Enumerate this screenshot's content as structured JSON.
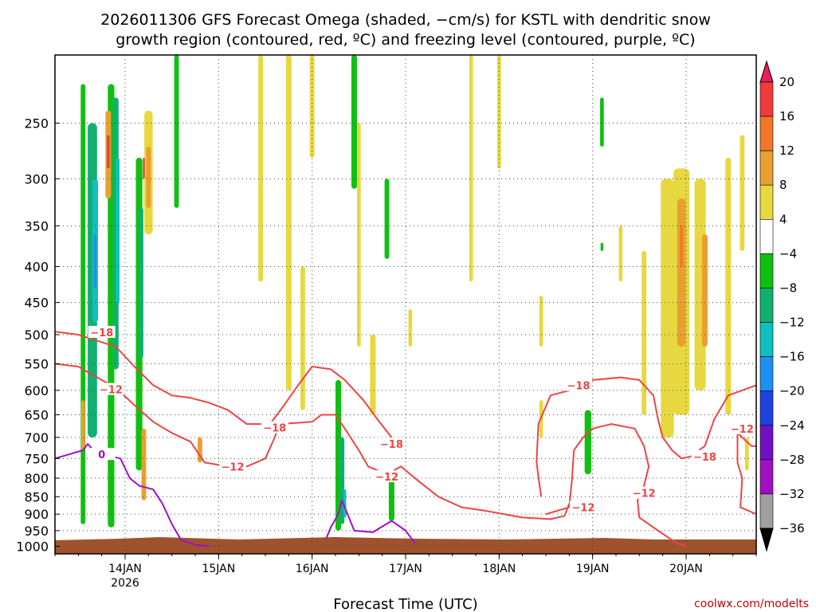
{
  "title_line1": "2026011306 GFS Forecast Omega (shaded, −cm/s) for KSTL with dendritic snow",
  "title_line2": "growth region (contoured, red, ºC) and freezing level (contoured, purple, ºC)",
  "credit": "coolwx.com/modelts",
  "chart_data": {
    "type": "heatmap",
    "title": "2026011306 GFS Forecast Omega (shaded, −cm/s) for KSTL with dendritic snow growth region (contoured, red, ºC) and freezing level (contoured, purple, ºC)",
    "xlabel": "Forecast Time (UTC)",
    "x_ticks": [
      {
        "label": "14JAN",
        "sub": "2026",
        "day": 14
      },
      {
        "label": "15JAN",
        "sub": "",
        "day": 15
      },
      {
        "label": "16JAN",
        "sub": "",
        "day": 16
      },
      {
        "label": "17JAN",
        "sub": "",
        "day": 17
      },
      {
        "label": "18JAN",
        "sub": "",
        "day": 18
      },
      {
        "label": "19JAN",
        "sub": "",
        "day": 19
      },
      {
        "label": "20JAN",
        "sub": "",
        "day": 20
      }
    ],
    "xlim_day": [
      13.25,
      20.75
    ],
    "ylabel": "",
    "y_ticks": [
      250,
      300,
      350,
      400,
      450,
      500,
      550,
      600,
      650,
      700,
      750,
      800,
      850,
      900,
      950,
      1000
    ],
    "ylim_hpa": [
      200,
      1025
    ],
    "y_scale": "log-pressure (inverted)",
    "grid": "dotted",
    "colorbar": {
      "levels": [
        "20",
        "16",
        "12",
        "8",
        "4",
        "−4",
        "−8",
        "−12",
        "−16",
        "−20",
        "−24",
        "−28",
        "−32",
        "−36"
      ],
      "colors": [
        "#e8205a",
        "#f03c3c",
        "#f07828",
        "#e8a030",
        "#e8d840",
        "#ffffff",
        "#10c010",
        "#10b070",
        "#10c0c0",
        "#2090f0",
        "#2040e0",
        "#7010c0",
        "#a010c0",
        "#a0a0a0",
        "#000000"
      ]
    },
    "omega_blobs": [
      {
        "day": 13.55,
        "p_top": 220,
        "p_bot": 930,
        "w": 0.05,
        "color": "#10c010"
      },
      {
        "day": 13.65,
        "p_top": 250,
        "p_bot": 700,
        "w": 0.1,
        "color": "#10b070"
      },
      {
        "day": 13.68,
        "p_top": 300,
        "p_bot": 480,
        "w": 0.06,
        "color": "#10c0c0"
      },
      {
        "day": 13.68,
        "p_top": 360,
        "p_bot": 430,
        "w": 0.03,
        "color": "#2090f0"
      },
      {
        "day": 13.85,
        "p_top": 220,
        "p_bot": 940,
        "w": 0.07,
        "color": "#10c010"
      },
      {
        "day": 13.9,
        "p_top": 230,
        "p_bot": 560,
        "w": 0.06,
        "color": "#10b070"
      },
      {
        "day": 13.92,
        "p_top": 280,
        "p_bot": 450,
        "w": 0.04,
        "color": "#10c0c0"
      },
      {
        "day": 14.15,
        "p_top": 280,
        "p_bot": 780,
        "w": 0.07,
        "color": "#10c010"
      },
      {
        "day": 14.17,
        "p_top": 330,
        "p_bot": 540,
        "w": 0.05,
        "color": "#10b070"
      },
      {
        "day": 13.82,
        "p_top": 240,
        "p_bot": 320,
        "w": 0.06,
        "color": "#e8a030"
      },
      {
        "day": 13.82,
        "p_top": 260,
        "p_bot": 290,
        "w": 0.03,
        "color": "#f03c3c"
      },
      {
        "day": 14.25,
        "p_top": 240,
        "p_bot": 360,
        "w": 0.09,
        "color": "#e8d840"
      },
      {
        "day": 14.25,
        "p_top": 270,
        "p_bot": 330,
        "w": 0.05,
        "color": "#e8a030"
      },
      {
        "day": 14.2,
        "p_top": 280,
        "p_bot": 300,
        "w": 0.02,
        "color": "#f03c3c"
      },
      {
        "day": 14.2,
        "p_top": 680,
        "p_bot": 860,
        "w": 0.05,
        "color": "#e8a030"
      },
      {
        "day": 13.55,
        "p_top": 620,
        "p_bot": 730,
        "w": 0.04,
        "color": "#e8a030"
      },
      {
        "day": 14.55,
        "p_top": 200,
        "p_bot": 330,
        "w": 0.05,
        "color": "#10c010"
      },
      {
        "day": 14.8,
        "p_top": 700,
        "p_bot": 760,
        "w": 0.05,
        "color": "#e8a030"
      },
      {
        "day": 15.45,
        "p_top": 200,
        "p_bot": 420,
        "w": 0.05,
        "color": "#e8d840"
      },
      {
        "day": 15.75,
        "p_top": 200,
        "p_bot": 600,
        "w": 0.06,
        "color": "#e8d840"
      },
      {
        "day": 15.9,
        "p_top": 400,
        "p_bot": 640,
        "w": 0.05,
        "color": "#e8d840"
      },
      {
        "day": 16.0,
        "p_top": 200,
        "p_bot": 280,
        "w": 0.05,
        "color": "#e8d840"
      },
      {
        "day": 16.28,
        "p_top": 580,
        "p_bot": 950,
        "w": 0.06,
        "color": "#10c010"
      },
      {
        "day": 16.32,
        "p_top": 700,
        "p_bot": 930,
        "w": 0.05,
        "color": "#10b070"
      },
      {
        "day": 16.35,
        "p_top": 830,
        "p_bot": 910,
        "w": 0.03,
        "color": "#10c0c0"
      },
      {
        "day": 16.45,
        "p_top": 200,
        "p_bot": 310,
        "w": 0.06,
        "color": "#10c010"
      },
      {
        "day": 16.5,
        "p_top": 250,
        "p_bot": 520,
        "w": 0.04,
        "color": "#e8d840"
      },
      {
        "day": 16.65,
        "p_top": 500,
        "p_bot": 650,
        "w": 0.06,
        "color": "#e8d840"
      },
      {
        "day": 16.8,
        "p_top": 300,
        "p_bot": 390,
        "w": 0.05,
        "color": "#10c010"
      },
      {
        "day": 16.85,
        "p_top": 800,
        "p_bot": 920,
        "w": 0.06,
        "color": "#10c010"
      },
      {
        "day": 17.05,
        "p_top": 460,
        "p_bot": 520,
        "w": 0.04,
        "color": "#e8d840"
      },
      {
        "day": 17.7,
        "p_top": 200,
        "p_bot": 420,
        "w": 0.04,
        "color": "#e8d840"
      },
      {
        "day": 18.0,
        "p_top": 200,
        "p_bot": 290,
        "w": 0.04,
        "color": "#e8d840"
      },
      {
        "day": 18.45,
        "p_top": 440,
        "p_bot": 520,
        "w": 0.04,
        "color": "#e8d840"
      },
      {
        "day": 18.45,
        "p_top": 620,
        "p_bot": 700,
        "w": 0.04,
        "color": "#e8d840"
      },
      {
        "day": 18.95,
        "p_top": 640,
        "p_bot": 790,
        "w": 0.07,
        "color": "#10c010"
      },
      {
        "day": 19.1,
        "p_top": 230,
        "p_bot": 270,
        "w": 0.04,
        "color": "#10c010"
      },
      {
        "day": 19.1,
        "p_top": 370,
        "p_bot": 380,
        "w": 0.03,
        "color": "#10c010"
      },
      {
        "day": 19.3,
        "p_top": 350,
        "p_bot": 420,
        "w": 0.04,
        "color": "#e8d840"
      },
      {
        "day": 19.55,
        "p_top": 380,
        "p_bot": 650,
        "w": 0.05,
        "color": "#e8d840"
      },
      {
        "day": 19.8,
        "p_top": 300,
        "p_bot": 700,
        "w": 0.14,
        "color": "#e8d840"
      },
      {
        "day": 19.95,
        "p_top": 290,
        "p_bot": 650,
        "w": 0.17,
        "color": "#e8d840"
      },
      {
        "day": 19.95,
        "p_top": 320,
        "p_bot": 520,
        "w": 0.09,
        "color": "#e8a030"
      },
      {
        "day": 19.95,
        "p_top": 350,
        "p_bot": 400,
        "w": 0.03,
        "color": "#f07828"
      },
      {
        "day": 20.15,
        "p_top": 300,
        "p_bot": 600,
        "w": 0.12,
        "color": "#e8d840"
      },
      {
        "day": 20.2,
        "p_top": 360,
        "p_bot": 520,
        "w": 0.06,
        "color": "#e8a030"
      },
      {
        "day": 20.45,
        "p_top": 280,
        "p_bot": 650,
        "w": 0.06,
        "color": "#e8d840"
      },
      {
        "day": 20.6,
        "p_top": 260,
        "p_bot": 380,
        "w": 0.05,
        "color": "#e8d840"
      },
      {
        "day": 20.65,
        "p_top": 700,
        "p_bot": 780,
        "w": 0.04,
        "color": "#e8d840"
      }
    ],
    "contours": [
      {
        "name": "-18",
        "color": "#ee4444",
        "label": "−18",
        "points": [
          [
            13.25,
            495
          ],
          [
            13.5,
            500
          ],
          [
            13.7,
            510
          ],
          [
            13.9,
            520
          ],
          [
            14.1,
            555
          ],
          [
            14.3,
            590
          ],
          [
            14.5,
            610
          ],
          [
            14.7,
            615
          ],
          [
            14.9,
            625
          ],
          [
            15.1,
            640
          ],
          [
            15.3,
            670
          ],
          [
            15.55,
            670
          ],
          [
            15.7,
            630
          ],
          [
            15.85,
            590
          ],
          [
            16.0,
            555
          ],
          [
            16.2,
            560
          ],
          [
            16.35,
            580
          ],
          [
            16.55,
            620
          ],
          [
            16.7,
            660
          ],
          [
            16.85,
            700
          ]
        ],
        "label_at": [
          [
            13.75,
            496
          ],
          [
            15.6,
            678
          ],
          [
            16.85,
            715
          ]
        ]
      },
      {
        "name": "-12",
        "color": "#ee4444",
        "label": "−12",
        "points": [
          [
            13.25,
            550
          ],
          [
            13.5,
            555
          ],
          [
            13.7,
            575
          ],
          [
            13.9,
            595
          ],
          [
            14.1,
            630
          ],
          [
            14.3,
            665
          ],
          [
            14.5,
            690
          ],
          [
            14.7,
            710
          ],
          [
            14.85,
            760
          ],
          [
            15.1,
            770
          ],
          [
            15.3,
            770
          ],
          [
            15.5,
            750
          ],
          [
            15.6,
            700
          ],
          [
            15.65,
            670
          ],
          [
            16.0,
            665
          ],
          [
            16.1,
            650
          ],
          [
            16.25,
            650
          ],
          [
            16.35,
            680
          ],
          [
            16.5,
            730
          ],
          [
            16.6,
            770
          ],
          [
            16.8,
            790
          ],
          [
            16.95,
            770
          ],
          [
            17.15,
            810
          ],
          [
            17.35,
            850
          ],
          [
            17.6,
            880
          ],
          [
            17.85,
            890
          ],
          [
            18.05,
            900
          ],
          [
            18.25,
            910
          ],
          [
            18.55,
            915
          ],
          [
            18.7,
            905
          ],
          [
            18.75,
            870
          ]
        ],
        "label_at": [
          [
            13.85,
            598
          ],
          [
            15.15,
            770
          ],
          [
            16.8,
            796
          ],
          [
            18.9,
            880
          ]
        ]
      },
      {
        "name": "-18b",
        "color": "#ee4444",
        "label": "−18",
        "points": [
          [
            18.45,
            850
          ],
          [
            18.4,
            760
          ],
          [
            18.42,
            670
          ],
          [
            18.55,
            610
          ],
          [
            18.75,
            600
          ],
          [
            19.0,
            580
          ],
          [
            19.3,
            575
          ],
          [
            19.5,
            580
          ],
          [
            19.65,
            610
          ],
          [
            19.7,
            660
          ],
          [
            19.75,
            700
          ],
          [
            19.85,
            730
          ],
          [
            19.95,
            750
          ],
          [
            20.05,
            745
          ],
          [
            20.2,
            720
          ],
          [
            20.3,
            660
          ],
          [
            20.45,
            610
          ],
          [
            20.75,
            590
          ]
        ],
        "label_at": [
          [
            18.85,
            590
          ],
          [
            20.2,
            745
          ]
        ]
      },
      {
        "name": "-12b",
        "color": "#ee4444",
        "label": "−12",
        "points": [
          [
            18.5,
            900
          ],
          [
            18.75,
            880
          ],
          [
            18.78,
            800
          ],
          [
            18.8,
            730
          ],
          [
            18.9,
            700
          ],
          [
            19.0,
            680
          ],
          [
            19.2,
            670
          ],
          [
            19.45,
            680
          ],
          [
            19.55,
            720
          ],
          [
            19.6,
            770
          ],
          [
            19.55,
            820
          ],
          [
            19.48,
            860
          ],
          [
            19.5,
            910
          ],
          [
            19.7,
            950
          ],
          [
            19.9,
            990
          ],
          [
            20.0,
            1000
          ]
        ],
        "label_at": [
          [
            19.55,
            840
          ]
        ]
      },
      {
        "name": "-12c",
        "color": "#ee4444",
        "label": "−12",
        "points": [
          [
            20.5,
            680
          ],
          [
            20.6,
            700
          ],
          [
            20.7,
            720
          ],
          [
            20.75,
            720
          ]
        ],
        "label_at": [
          [
            20.6,
            680
          ]
        ]
      },
      {
        "name": "-12d",
        "color": "#ee4444",
        "label": "",
        "points": [
          [
            20.55,
            690
          ],
          [
            20.55,
            760
          ],
          [
            20.6,
            800
          ],
          [
            20.58,
            880
          ],
          [
            20.75,
            900
          ]
        ],
        "label_at": []
      },
      {
        "name": "0",
        "color": "#a010c8",
        "label": "0",
        "points": [
          [
            13.25,
            750
          ],
          [
            13.4,
            740
          ],
          [
            13.55,
            730
          ],
          [
            13.6,
            715
          ],
          [
            13.7,
            740
          ],
          [
            13.85,
            745
          ],
          [
            13.95,
            750
          ],
          [
            14.05,
            800
          ],
          [
            14.15,
            820
          ],
          [
            14.3,
            830
          ],
          [
            14.4,
            870
          ],
          [
            14.5,
            930
          ],
          [
            14.6,
            980
          ],
          [
            14.75,
            995
          ],
          [
            14.9,
            1000
          ]
        ],
        "label_at": [
          [
            13.75,
            740
          ]
        ]
      },
      {
        "name": "0b",
        "color": "#a010c8",
        "label": "",
        "points": [
          [
            16.15,
            975
          ],
          [
            16.2,
            940
          ],
          [
            16.28,
            900
          ],
          [
            16.32,
            860
          ],
          [
            16.35,
            880
          ],
          [
            16.45,
            950
          ],
          [
            16.65,
            955
          ],
          [
            16.85,
            920
          ],
          [
            17.0,
            950
          ],
          [
            17.1,
            990
          ]
        ],
        "label_at": []
      }
    ]
  }
}
